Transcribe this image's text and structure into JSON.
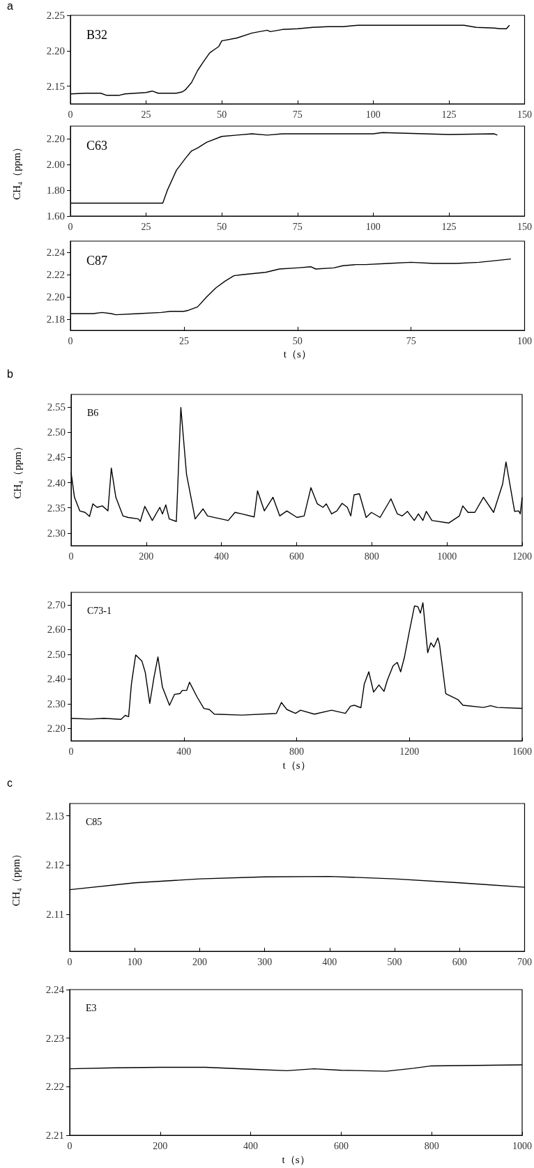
{
  "chart_data": [
    {
      "type": "line",
      "title": "B32",
      "annotations": [
        "a"
      ],
      "color": "#000000",
      "grid": false,
      "x": [
        0,
        5,
        10,
        12,
        16,
        18,
        25,
        27,
        29,
        35,
        37,
        38,
        40,
        42,
        44,
        46,
        48,
        49,
        50,
        55,
        60,
        65,
        66,
        70,
        75,
        80,
        85,
        90,
        95,
        100,
        130,
        134,
        140,
        142,
        144,
        145
      ],
      "values": [
        2.139,
        2.14,
        2.14,
        2.137,
        2.137,
        2.139,
        2.141,
        2.143,
        2.14,
        2.14,
        2.142,
        2.145,
        2.155,
        2.172,
        2.185,
        2.197,
        2.203,
        2.206,
        2.214,
        2.218,
        2.225,
        2.229,
        2.227,
        2.23,
        2.231,
        2.233,
        2.234,
        2.234,
        2.236,
        2.236,
        2.236,
        2.233,
        2.232,
        2.231,
        2.231,
        2.236
      ],
      "xlim": [
        0,
        150
      ],
      "xticks": [
        0,
        25,
        50,
        75,
        100,
        125,
        150
      ],
      "ylim": [
        2.125,
        2.25
      ],
      "yticks": [
        2.15,
        {
          "value": 2.2,
          "label": "2.20"
        },
        2.25
      ]
    },
    {
      "type": "line",
      "title": "C63",
      "ylabel": "CH₄（ppm）",
      "color": "#000000",
      "grid": false,
      "x": [
        0,
        10,
        20,
        30,
        30.5,
        32,
        35,
        38,
        40,
        42,
        45,
        50,
        55,
        60,
        65,
        70,
        100,
        103,
        125,
        140,
        141
      ],
      "values": [
        1.7,
        1.7,
        1.7,
        1.7,
        1.7,
        1.8,
        1.956,
        2.05,
        2.107,
        2.13,
        2.175,
        2.22,
        2.23,
        2.24,
        2.23,
        2.24,
        2.24,
        2.25,
        2.235,
        2.24,
        2.23
      ],
      "xlim": [
        0,
        150
      ],
      "xticks": [
        0,
        25,
        50,
        75,
        100,
        125,
        150
      ],
      "ylim": [
        1.6,
        2.3
      ],
      "yticks": [
        {
          "value": 1.6,
          "label": "1.60"
        },
        {
          "value": 1.8,
          "label": "1.80"
        },
        {
          "value": 2.0,
          "label": "2.00"
        },
        {
          "value": 2.2,
          "label": "2.20"
        }
      ]
    },
    {
      "type": "line",
      "title": "C87",
      "xlabel": "t（s）",
      "color": "#000000",
      "grid": false,
      "x": [
        0,
        5,
        7,
        9,
        10,
        15,
        20,
        22,
        25,
        26,
        28,
        30,
        32,
        34,
        36,
        38,
        43,
        46,
        50,
        53,
        54,
        58,
        60,
        63,
        65,
        70,
        75,
        80,
        85,
        90,
        97
      ],
      "values": [
        2.185,
        2.185,
        2.186,
        2.185,
        2.184,
        2.185,
        2.186,
        2.187,
        2.187,
        2.188,
        2.191,
        2.2,
        2.208,
        2.214,
        2.219,
        2.22,
        2.222,
        2.225,
        2.226,
        2.227,
        2.225,
        2.226,
        2.228,
        2.229,
        2.229,
        2.23,
        2.231,
        2.23,
        2.23,
        2.231,
        2.234
      ],
      "xlim": [
        0,
        100
      ],
      "xticks": [
        0,
        25,
        50,
        75,
        100
      ],
      "ylim": [
        2.17,
        2.25
      ],
      "yticks": [
        2.18,
        {
          "value": 2.2,
          "label": "2.20"
        },
        2.22,
        2.24
      ]
    },
    {
      "type": "line",
      "title": "B6",
      "annotations": [
        "b"
      ],
      "ylabel": "CH₄（ppm）",
      "color": "#000000",
      "grid": false,
      "x": [
        0,
        9,
        23,
        37,
        49,
        58,
        69,
        83,
        98,
        107,
        119,
        138,
        152,
        179,
        184,
        196,
        216,
        236,
        243,
        252,
        261,
        280,
        292,
        307,
        330,
        351,
        363,
        399,
        418,
        436,
        454,
        487,
        496,
        514,
        537,
        555,
        574,
        601,
        620,
        638,
        655,
        670,
        679,
        693,
        707,
        721,
        735,
        744,
        753,
        767,
        785,
        799,
        822,
        851,
        868,
        881,
        895,
        913,
        924,
        936,
        945,
        960,
        1005,
        1033,
        1042,
        1056,
        1074,
        1097,
        1124,
        1148,
        1157,
        1180,
        1191,
        1195,
        1200
      ],
      "values": [
        2.42,
        2.371,
        2.344,
        2.341,
        2.333,
        2.358,
        2.351,
        2.354,
        2.344,
        2.429,
        2.371,
        2.334,
        2.331,
        2.328,
        2.323,
        2.353,
        2.325,
        2.351,
        2.338,
        2.356,
        2.328,
        2.323,
        2.549,
        2.417,
        2.328,
        2.348,
        2.334,
        2.328,
        2.325,
        2.341,
        2.338,
        2.332,
        2.384,
        2.344,
        2.371,
        2.334,
        2.344,
        2.331,
        2.334,
        2.39,
        2.358,
        2.351,
        2.358,
        2.338,
        2.344,
        2.359,
        2.351,
        2.334,
        2.376,
        2.378,
        2.331,
        2.341,
        2.331,
        2.368,
        2.338,
        2.334,
        2.343,
        2.325,
        2.338,
        2.325,
        2.343,
        2.325,
        2.32,
        2.334,
        2.354,
        2.341,
        2.341,
        2.371,
        2.341,
        2.397,
        2.441,
        2.343,
        2.344,
        2.338,
        2.371
      ],
      "xlim": [
        0,
        1200
      ],
      "xticks": [
        0,
        200,
        400,
        600,
        800,
        1000,
        1200
      ],
      "ylim": [
        2.275,
        2.575
      ],
      "yticks": [
        {
          "value": 2.3,
          "label": "2.30"
        },
        2.35,
        {
          "value": 2.4,
          "label": "2.40"
        },
        2.45,
        {
          "value": 2.5,
          "label": "2.50"
        },
        2.55
      ]
    },
    {
      "type": "line",
      "title": "C73-1",
      "xlabel": "t（s）",
      "color": "#000000",
      "grid": false,
      "x": [
        0,
        67,
        116,
        177,
        192,
        204,
        214,
        229,
        251,
        263,
        279,
        294,
        308,
        324,
        349,
        367,
        386,
        395,
        410,
        420,
        447,
        471,
        490,
        508,
        606,
        728,
        746,
        765,
        796,
        814,
        863,
        924,
        973,
        991,
        1004,
        1028,
        1040,
        1056,
        1073,
        1092,
        1110,
        1122,
        1142,
        1157,
        1169,
        1182,
        1200,
        1218,
        1230,
        1239,
        1248,
        1265,
        1276,
        1287,
        1301,
        1307,
        1329,
        1353,
        1372,
        1390,
        1463,
        1488,
        1512,
        1600
      ],
      "values": [
        2.241,
        2.238,
        2.241,
        2.237,
        2.253,
        2.248,
        2.38,
        2.497,
        2.473,
        2.427,
        2.301,
        2.407,
        2.489,
        2.367,
        2.294,
        2.338,
        2.341,
        2.354,
        2.354,
        2.387,
        2.327,
        2.281,
        2.277,
        2.258,
        2.254,
        2.261,
        2.305,
        2.277,
        2.261,
        2.274,
        2.258,
        2.274,
        2.261,
        2.29,
        2.294,
        2.284,
        2.38,
        2.429,
        2.347,
        2.376,
        2.35,
        2.396,
        2.453,
        2.467,
        2.429,
        2.486,
        2.593,
        2.695,
        2.692,
        2.666,
        2.708,
        2.506,
        2.546,
        2.529,
        2.566,
        2.54,
        2.341,
        2.327,
        2.317,
        2.294,
        2.285,
        2.292,
        2.285,
        2.281
      ],
      "xlim": [
        0,
        1600
      ],
      "xticks": [
        0,
        400,
        800,
        1200,
        1600
      ],
      "ylim": [
        2.15,
        2.75
      ],
      "yticks": [
        {
          "value": 2.2,
          "label": "2.20"
        },
        {
          "value": 2.3,
          "label": "2.30"
        },
        {
          "value": 2.4,
          "label": "2.40"
        },
        {
          "value": 2.5,
          "label": "2.50"
        },
        {
          "value": 2.6,
          "label": "2.60"
        },
        {
          "value": 2.7,
          "label": "2.70"
        }
      ]
    },
    {
      "type": "line",
      "title": "C85",
      "annotations": [
        "c"
      ],
      "ylabel": "CH₄（ppm）",
      "color": "#000000",
      "grid": false,
      "x": [
        0,
        100,
        200,
        300,
        400,
        500,
        600,
        700
      ],
      "values": [
        2.115,
        2.1164,
        2.1172,
        2.1176,
        2.1177,
        2.1172,
        2.1164,
        2.1155
      ],
      "xlim": [
        0,
        700
      ],
      "xticks": [
        0,
        100,
        200,
        300,
        400,
        500,
        600,
        700
      ],
      "ylim": [
        2.1025,
        2.1325
      ],
      "yticks": [
        2.11,
        2.12,
        2.13
      ]
    },
    {
      "type": "line",
      "title": "E3",
      "xlabel": "t（s）",
      "color": "#000000",
      "grid": false,
      "x": [
        0,
        100,
        200,
        300,
        400,
        480,
        540,
        600,
        700,
        760,
        800,
        900,
        1000
      ],
      "values": [
        2.2237,
        2.2239,
        2.224,
        2.224,
        2.2236,
        2.2233,
        2.2237,
        2.2234,
        2.2232,
        2.2238,
        2.2243,
        2.2244,
        2.2245
      ],
      "xlim": [
        0,
        1000
      ],
      "xticks": [
        0,
        200,
        400,
        600,
        800,
        1000
      ],
      "ylim": [
        2.21,
        2.24
      ],
      "yticks": [
        2.21,
        2.22,
        2.23,
        2.24
      ]
    }
  ]
}
